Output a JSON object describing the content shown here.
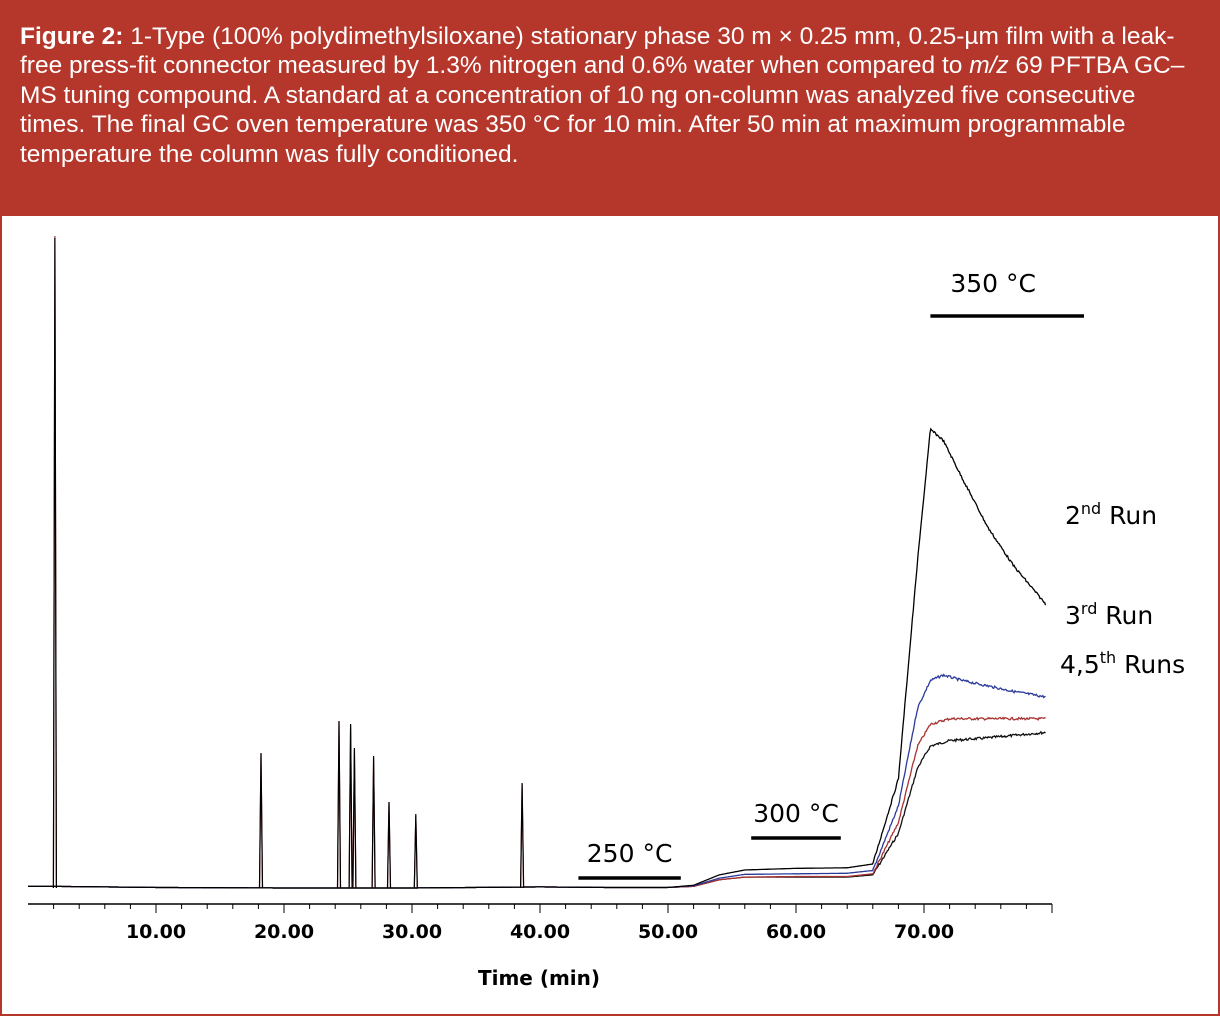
{
  "caption": {
    "label": "Figure 2:",
    "text_part1": " 1-Type (100% polydimethylsiloxane) stationary phase 30 m × 0.25 mm, 0.25-µm film with a leak-free press-fit connector measured by 1.3% nitrogen and 0.6% water when compared to ",
    "mz": "m/z",
    "text_part2": " 69 PFTBA GC–MS tuning compound. A standard at a concentration of 10 ng on-column was analyzed five consecutive times. The final GC oven temperature was 350 °C for 10 min. After 50 min at maximum programmable temperature the column was fully conditioned."
  },
  "colors": {
    "caption_bg": "#b5362a",
    "run2": "#000000",
    "run3": "#2b3a9a",
    "run4": "#a83232",
    "run5": "#111111"
  },
  "chart_data": {
    "type": "line",
    "xlabel": "Time (min)",
    "ylabel": "",
    "xlim": [
      0,
      80
    ],
    "x_ticks": [
      {
        "value": 10,
        "label": "10.00"
      },
      {
        "value": 20,
        "label": "20.00"
      },
      {
        "value": 30,
        "label": "30.00"
      },
      {
        "value": 40,
        "label": "40.00"
      },
      {
        "value": 50,
        "label": "50.00"
      },
      {
        "value": 60,
        "label": "60.00"
      },
      {
        "value": 70,
        "label": "70.00"
      }
    ],
    "temperature_segments": [
      {
        "label": "250 °C",
        "x_start": 43,
        "x_end": 51
      },
      {
        "label": "300 °C",
        "x_start": 56.5,
        "x_end": 63.5
      },
      {
        "label": "350 °C",
        "x_start": 70.5,
        "x_end": 82.5
      }
    ],
    "peaks_x": [
      2.1,
      18.2,
      24.3,
      25.2,
      25.5,
      27.0,
      28.2,
      30.3,
      38.6
    ],
    "series": [
      {
        "name_base": "2",
        "name_sup": "nd",
        "name_rest": " Run",
        "color": "#000000",
        "points": [
          [
            0,
            0.3
          ],
          [
            2,
            0.3
          ],
          [
            10,
            0.1
          ],
          [
            20,
            0
          ],
          [
            30,
            0
          ],
          [
            40,
            0.2
          ],
          [
            45,
            0.1
          ],
          [
            50,
            0.1
          ],
          [
            52,
            0.5
          ],
          [
            54,
            2.4
          ],
          [
            56,
            3.3
          ],
          [
            60,
            3.6
          ],
          [
            64,
            3.7
          ],
          [
            66,
            4.4
          ],
          [
            68,
            20
          ],
          [
            69.5,
            60
          ],
          [
            70.5,
            84
          ],
          [
            71.5,
            82
          ],
          [
            73,
            75
          ],
          [
            75,
            66
          ],
          [
            77,
            59
          ],
          [
            79.5,
            52
          ]
        ]
      },
      {
        "name_base": "3",
        "name_sup": "rd",
        "name_rest": " Run",
        "color": "#2b3a9a",
        "points": [
          [
            0,
            0.3
          ],
          [
            2,
            0.3
          ],
          [
            10,
            0.1
          ],
          [
            20,
            0
          ],
          [
            30,
            0
          ],
          [
            40,
            0.2
          ],
          [
            45,
            0.1
          ],
          [
            50,
            0.1
          ],
          [
            52,
            0.4
          ],
          [
            54,
            1.8
          ],
          [
            56,
            2.5
          ],
          [
            60,
            2.6
          ],
          [
            64,
            2.7
          ],
          [
            66,
            3.2
          ],
          [
            68,
            15
          ],
          [
            69.5,
            33
          ],
          [
            70.5,
            38
          ],
          [
            71.5,
            39
          ],
          [
            73,
            38
          ],
          [
            75,
            37
          ],
          [
            77,
            36
          ],
          [
            79.5,
            35
          ]
        ]
      },
      {
        "name_base": "4,5",
        "name_sup": "th",
        "name_rest": " Runs",
        "color": "#a83232",
        "points": [
          [
            0,
            0.3
          ],
          [
            2,
            0.3
          ],
          [
            10,
            0.1
          ],
          [
            20,
            0
          ],
          [
            30,
            0
          ],
          [
            40,
            0.2
          ],
          [
            45,
            0.1
          ],
          [
            50,
            0.1
          ],
          [
            52,
            0.3
          ],
          [
            54,
            1.5
          ],
          [
            56,
            2.0
          ],
          [
            60,
            2.1
          ],
          [
            64,
            2.1
          ],
          [
            66,
            2.6
          ],
          [
            68,
            12
          ],
          [
            69.5,
            26
          ],
          [
            70.5,
            30
          ],
          [
            72,
            31
          ],
          [
            75,
            31
          ],
          [
            79.5,
            31
          ]
        ]
      },
      {
        "name_base": "",
        "name_sup": "",
        "name_rest": "",
        "color": "#111111",
        "points": [
          [
            0,
            0.3
          ],
          [
            2,
            0.3
          ],
          [
            10,
            0.1
          ],
          [
            20,
            0
          ],
          [
            30,
            0
          ],
          [
            40,
            0.2
          ],
          [
            45,
            0.1
          ],
          [
            50,
            0.1
          ],
          [
            52,
            0.3
          ],
          [
            54,
            1.5
          ],
          [
            56,
            2.0
          ],
          [
            60,
            2.0
          ],
          [
            64,
            2.0
          ],
          [
            66,
            2.4
          ],
          [
            68,
            10
          ],
          [
            69.5,
            22
          ],
          [
            70.5,
            26
          ],
          [
            72,
            27
          ],
          [
            75,
            27.5
          ],
          [
            79.5,
            28.5
          ]
        ]
      }
    ]
  }
}
